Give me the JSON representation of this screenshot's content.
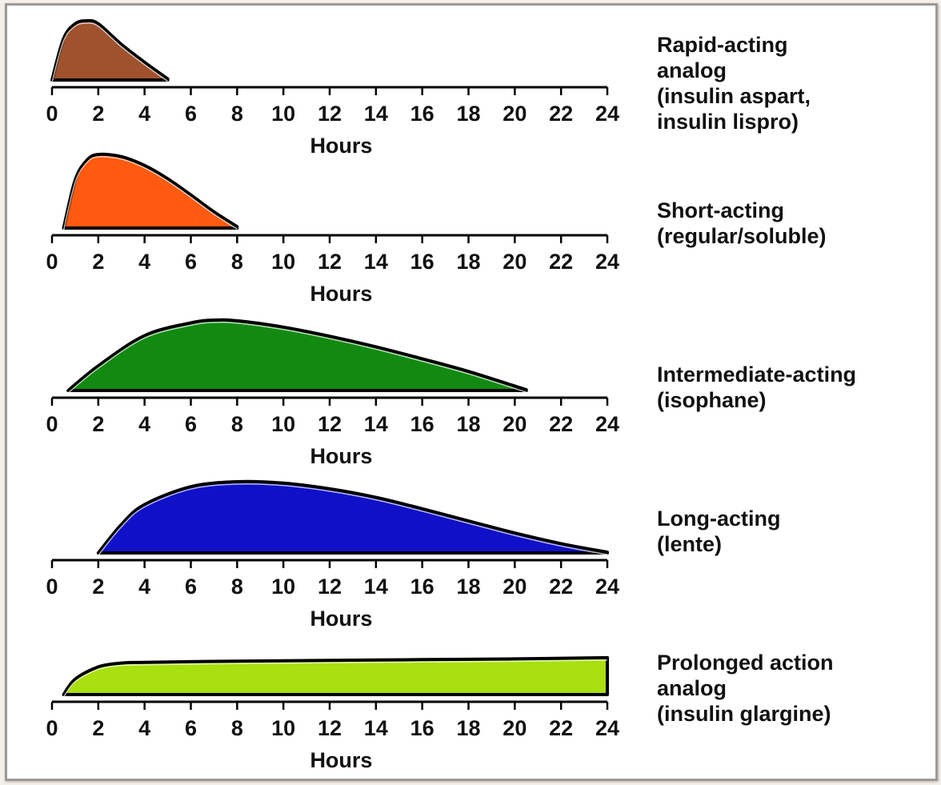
{
  "chart_data": [
    {
      "type": "area",
      "x": [
        0,
        0.5,
        1,
        1.5,
        2,
        3,
        4,
        5
      ],
      "y": [
        0,
        0.7,
        0.95,
        1.0,
        0.95,
        0.6,
        0.3,
        0.02
      ],
      "x_ticks": [
        "0",
        "2",
        "4",
        "6",
        "8",
        "10",
        "12",
        "14",
        "16",
        "18",
        "20",
        "22",
        "24"
      ],
      "xlim": [
        0,
        24
      ],
      "xlabel": "Hours",
      "label_lines": [
        "Rapid-acting",
        "analog",
        "(insulin aspart,",
        "insulin lispro)"
      ],
      "fill_color": "#a0522d"
    },
    {
      "type": "area",
      "x": [
        0.5,
        1,
        1.5,
        2,
        3,
        4,
        5,
        6,
        7,
        8
      ],
      "y": [
        0,
        0.65,
        0.92,
        1.0,
        0.97,
        0.85,
        0.67,
        0.45,
        0.22,
        0.02
      ],
      "x_ticks": [
        "0",
        "2",
        "4",
        "6",
        "8",
        "10",
        "12",
        "14",
        "16",
        "18",
        "20",
        "22",
        "24"
      ],
      "xlim": [
        0,
        24
      ],
      "xlabel": "Hours",
      "label_lines": [
        "Short-acting",
        "(regular/soluble)"
      ],
      "fill_color": "#ff5a10"
    },
    {
      "type": "area",
      "x": [
        0.7,
        2,
        4,
        6,
        7,
        8,
        10,
        12,
        14,
        16,
        18,
        20.5
      ],
      "y": [
        0,
        0.35,
        0.78,
        0.96,
        1.0,
        0.99,
        0.9,
        0.77,
        0.62,
        0.45,
        0.27,
        0.01
      ],
      "x_ticks": [
        "0",
        "2",
        "4",
        "6",
        "8",
        "10",
        "12",
        "14",
        "16",
        "18",
        "20",
        "22",
        "24"
      ],
      "xlim": [
        0,
        24
      ],
      "xlabel": "Hours",
      "label_lines": [
        "Intermediate-acting",
        "(isophane)"
      ],
      "fill_color": "#128a12"
    },
    {
      "type": "area",
      "x": [
        2,
        3,
        4,
        6,
        8,
        10,
        12,
        14,
        16,
        18,
        20,
        22,
        24
      ],
      "y": [
        0,
        0.4,
        0.68,
        0.93,
        1.0,
        0.98,
        0.9,
        0.78,
        0.62,
        0.45,
        0.28,
        0.13,
        0.01
      ],
      "x_ticks": [
        "0",
        "2",
        "4",
        "6",
        "8",
        "10",
        "12",
        "14",
        "16",
        "18",
        "20",
        "22",
        "24"
      ],
      "xlim": [
        0,
        24
      ],
      "xlabel": "Hours",
      "label_lines": [
        "Long-acting",
        "(lente)"
      ],
      "fill_color": "#1010c8"
    },
    {
      "type": "area",
      "x": [
        0.5,
        1,
        2,
        3,
        4,
        8,
        12,
        16,
        20,
        24
      ],
      "y": [
        0,
        0.4,
        0.72,
        0.82,
        0.84,
        0.87,
        0.89,
        0.91,
        0.93,
        0.96
      ],
      "x_ticks": [
        "0",
        "2",
        "4",
        "6",
        "8",
        "10",
        "12",
        "14",
        "16",
        "18",
        "20",
        "22",
        "24"
      ],
      "xlim": [
        0,
        24
      ],
      "xlabel": "Hours",
      "label_lines": [
        "Prolonged action",
        "analog",
        "(insulin glargine)"
      ],
      "fill_color": "#a8e010"
    }
  ]
}
